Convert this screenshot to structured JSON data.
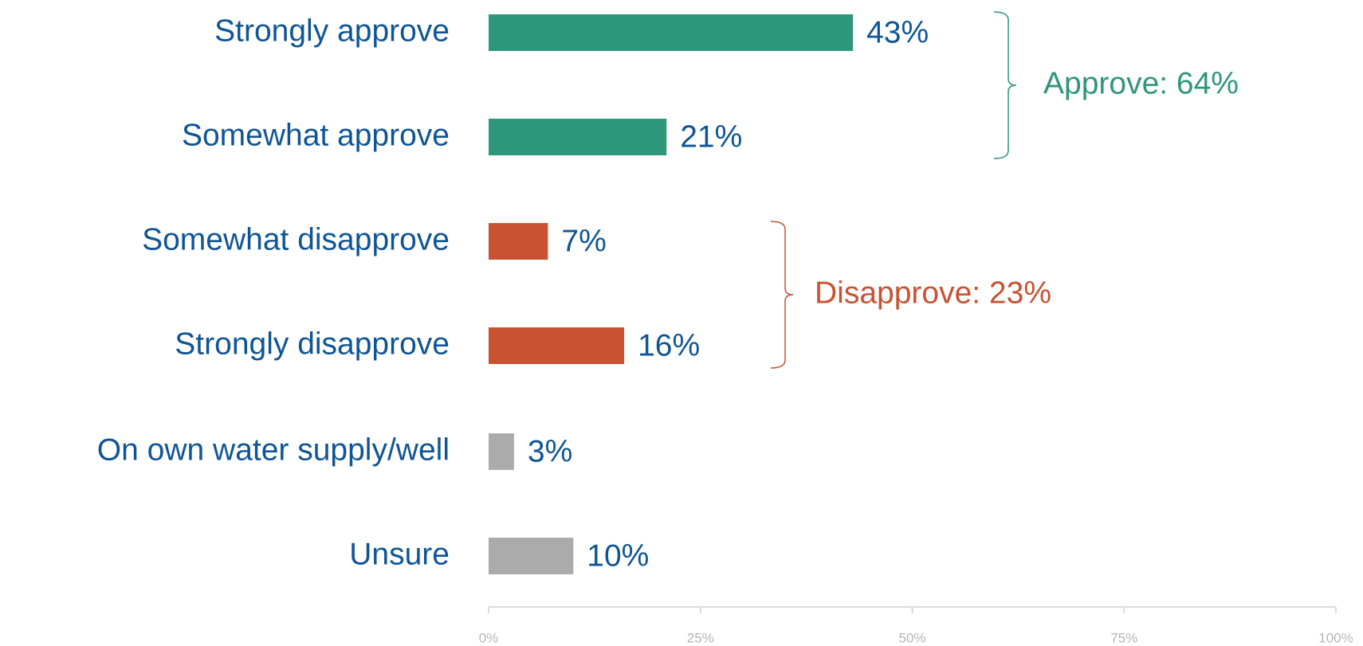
{
  "chart_data": {
    "type": "hbar",
    "categories": [
      "Strongly approve",
      "Somewhat approve",
      "Somewhat disapprove",
      "Strongly disapprove",
      "On own water supply/well",
      "Unsure"
    ],
    "values": [
      43,
      21,
      7,
      16,
      3,
      10
    ],
    "value_labels": [
      "43%",
      "21%",
      "7%",
      "16%",
      "3%",
      "10%"
    ],
    "colors": [
      "#2e967b",
      "#2e967b",
      "#c85232",
      "#c85232",
      "#ababab",
      "#ababab"
    ],
    "xlim": [
      0,
      100
    ],
    "xticks": [
      {
        "value": 0,
        "label": "0%"
      },
      {
        "value": 25,
        "label": "25%"
      },
      {
        "value": 50,
        "label": "50%"
      },
      {
        "value": 75,
        "label": "75%"
      },
      {
        "value": 100,
        "label": "100%"
      }
    ],
    "annotations": [
      {
        "text": "Approve: 64%",
        "color": "#2e967b"
      },
      {
        "text": "Disapprove: 23%",
        "color": "#c85232"
      }
    ]
  }
}
